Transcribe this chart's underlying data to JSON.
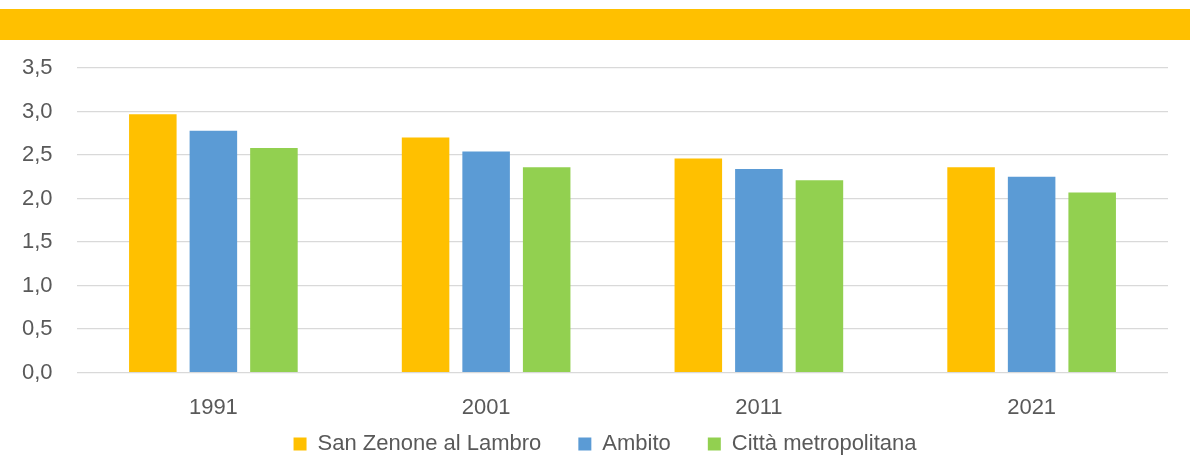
{
  "chart_data": {
    "type": "bar",
    "categories": [
      "1991",
      "2001",
      "2011",
      "2021"
    ],
    "series": [
      {
        "name": "San Zenone al Lambro",
        "color": "#ffc000",
        "values": [
          2.97,
          2.7,
          2.46,
          2.36
        ]
      },
      {
        "name": "Ambito",
        "color": "#5b9bd5",
        "values": [
          2.78,
          2.54,
          2.34,
          2.25
        ]
      },
      {
        "name": "Città metropolitana",
        "color": "#92d050",
        "values": [
          2.58,
          2.36,
          2.21,
          2.07
        ]
      }
    ],
    "ylim": [
      0,
      3.5
    ],
    "yticks": [
      {
        "value": 0,
        "label": "0,0"
      },
      {
        "value": 0.5,
        "label": "0,5"
      },
      {
        "value": 1,
        "label": "1,0"
      },
      {
        "value": 1.5,
        "label": "1,5"
      },
      {
        "value": 2,
        "label": "2,0"
      },
      {
        "value": 2.5,
        "label": "2,5"
      },
      {
        "value": 3,
        "label": "3,0"
      },
      {
        "value": 3.5,
        "label": "3,5"
      }
    ],
    "grid": "y",
    "legend": "bottom"
  }
}
